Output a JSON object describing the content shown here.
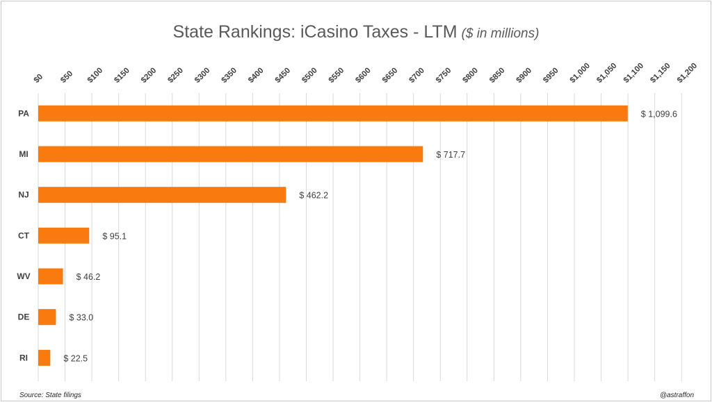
{
  "chart_data": {
    "type": "bar",
    "orientation": "horizontal",
    "title": "State Rankings: iCasino Taxes - LTM",
    "subtitle": "($ in millions)",
    "categories": [
      "PA",
      "MI",
      "NJ",
      "CT",
      "WV",
      "DE",
      "RI"
    ],
    "values": [
      1099.6,
      717.7,
      462.2,
      95.1,
      46.2,
      33.0,
      22.5
    ],
    "data_labels": [
      "$ 1,099.6",
      "$ 717.7",
      "$ 462.2",
      "$ 95.1",
      "$ 46.2",
      "$ 33.0",
      "$ 22.5"
    ],
    "x_ticks": [
      "$0",
      "$50",
      "$100",
      "$150",
      "$200",
      "$250",
      "$300",
      "$350",
      "$400",
      "$450",
      "$500",
      "$550",
      "$600",
      "$650",
      "$700",
      "$750",
      "$800",
      "$850",
      "$900",
      "$950",
      "$1,000",
      "$1,050",
      "$1,100",
      "$1,150",
      "$1,200"
    ],
    "xlim": [
      0,
      1200
    ],
    "x_tick_step": 50,
    "x_axis_position": "top",
    "grid": "vertical",
    "legend": "none",
    "bar_color": "#f97b10"
  },
  "footer": {
    "source": "Source: State filings",
    "credit": "@astraffon"
  }
}
